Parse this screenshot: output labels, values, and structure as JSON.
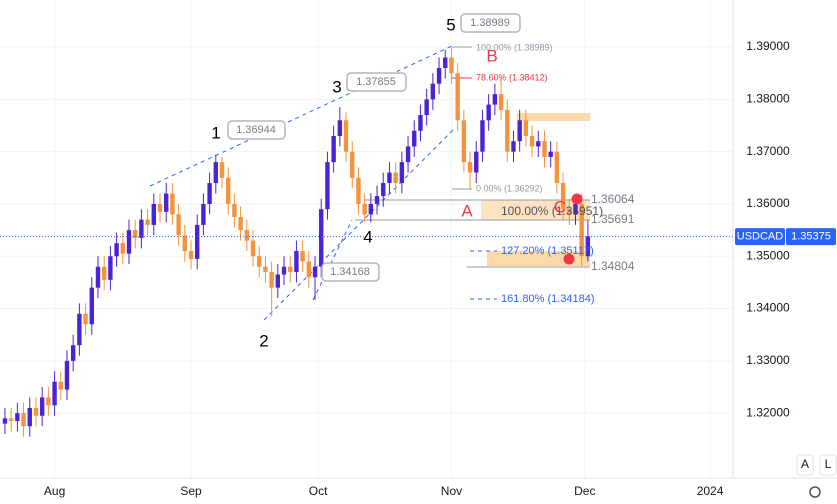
{
  "chart_data": {
    "type": "candlestick",
    "symbol": "USDCAD",
    "last_price": 1.35375,
    "up_color": "#4a23d6",
    "down_color": "#f5923e",
    "grid": true,
    "ylim": [
      1.3076,
      1.399
    ],
    "xlim": [
      -0.8,
      117.4
    ],
    "yticks": [
      {
        "value": 1.32,
        "label": "1.32000"
      },
      {
        "value": 1.33,
        "label": "1.33000"
      },
      {
        "value": 1.34,
        "label": "1.34000"
      },
      {
        "value": 1.35,
        "label": "1.35000"
      },
      {
        "value": 1.36,
        "label": "1.36000"
      },
      {
        "value": 1.37,
        "label": "1.37000"
      },
      {
        "value": 1.38,
        "label": "1.38000"
      },
      {
        "value": 1.39,
        "label": "1.39000"
      }
    ],
    "xticks": [
      {
        "value": 8,
        "label": "Aug"
      },
      {
        "value": 30,
        "label": "Sep"
      },
      {
        "value": 50.5,
        "label": "Oct"
      },
      {
        "value": 72,
        "label": "Nov"
      },
      {
        "value": 93.5,
        "label": "Dec"
      },
      {
        "value": 113.7,
        "label": "2024"
      }
    ],
    "x": [
      0,
      1,
      2,
      3,
      4,
      5,
      6,
      7,
      8,
      9,
      10,
      11,
      12,
      13,
      14,
      15,
      16,
      17,
      18,
      19,
      20,
      21,
      22,
      23,
      24,
      25,
      26,
      27,
      28,
      29,
      30,
      31,
      32,
      33,
      34,
      35,
      36,
      37,
      38,
      39,
      40,
      41,
      42,
      43,
      44,
      45,
      46,
      47,
      48,
      49,
      50,
      51,
      52,
      53,
      54,
      55,
      56,
      57,
      58,
      59,
      60,
      61,
      62,
      63,
      64,
      65,
      66,
      67,
      68,
      69,
      70,
      71,
      72,
      73,
      74,
      75,
      76,
      77,
      78,
      79,
      80,
      81,
      82,
      83,
      84,
      85,
      86,
      87,
      88,
      89,
      90,
      91,
      92,
      93,
      94
    ],
    "open": [
      1.318,
      1.319,
      1.3185,
      1.32,
      1.3175,
      1.321,
      1.3195,
      1.323,
      1.3215,
      1.326,
      1.3245,
      1.33,
      1.333,
      1.339,
      1.337,
      1.344,
      1.348,
      1.3455,
      1.35,
      1.3525,
      1.3505,
      1.355,
      1.3535,
      1.357,
      1.356,
      1.36,
      1.3585,
      1.362,
      1.358,
      1.354,
      1.351,
      1.3495,
      1.356,
      1.36,
      1.364,
      1.368,
      1.365,
      1.36,
      1.3575,
      1.355,
      1.353,
      1.35,
      1.348,
      1.347,
      1.344,
      1.3465,
      1.348,
      1.347,
      1.351,
      1.349,
      1.346,
      1.348,
      1.359,
      1.368,
      1.373,
      1.376,
      1.37,
      1.365,
      1.36,
      1.358,
      1.36,
      1.3615,
      1.364,
      1.366,
      1.364,
      1.368,
      1.371,
      1.374,
      1.377,
      1.38,
      1.383,
      1.386,
      1.388,
      1.385,
      1.376,
      1.368,
      1.366,
      1.37,
      1.376,
      1.379,
      1.381,
      1.378,
      1.37,
      1.372,
      1.376,
      1.373,
      1.371,
      1.372,
      1.369,
      1.37,
      1.364,
      1.359,
      1.358,
      1.36,
      1.35
    ],
    "high": [
      1.321,
      1.321,
      1.322,
      1.322,
      1.323,
      1.323,
      1.325,
      1.325,
      1.328,
      1.328,
      1.332,
      1.335,
      1.341,
      1.341,
      1.346,
      1.35,
      1.35,
      1.352,
      1.3545,
      1.3545,
      1.357,
      1.357,
      1.359,
      1.359,
      1.362,
      1.362,
      1.364,
      1.364,
      1.36,
      1.356,
      1.353,
      1.358,
      1.362,
      1.366,
      1.36944,
      1.369,
      1.367,
      1.362,
      1.3595,
      1.357,
      1.355,
      1.352,
      1.35,
      1.349,
      1.3485,
      1.35,
      1.35,
      1.353,
      1.353,
      1.351,
      1.35,
      1.361,
      1.37,
      1.375,
      1.37855,
      1.3775,
      1.372,
      1.367,
      1.362,
      1.362,
      1.3635,
      1.366,
      1.368,
      1.368,
      1.37,
      1.373,
      1.376,
      1.379,
      1.382,
      1.385,
      1.388,
      1.3895,
      1.38989,
      1.387,
      1.378,
      1.37,
      1.372,
      1.378,
      1.381,
      1.383,
      1.3841,
      1.38,
      1.374,
      1.378,
      1.378,
      1.375,
      1.374,
      1.374,
      1.372,
      1.372,
      1.366,
      1.361,
      1.3606,
      1.362,
      1.3569
    ],
    "low": [
      1.316,
      1.3165,
      1.3165,
      1.3155,
      1.3155,
      1.3175,
      1.3175,
      1.3195,
      1.3195,
      1.3225,
      1.3225,
      1.328,
      1.331,
      1.335,
      1.335,
      1.342,
      1.3435,
      1.3435,
      1.348,
      1.3485,
      1.3485,
      1.3515,
      1.3515,
      1.354,
      1.354,
      1.3565,
      1.3565,
      1.356,
      1.352,
      1.349,
      1.3475,
      1.3475,
      1.354,
      1.358,
      1.362,
      1.363,
      1.358,
      1.3555,
      1.353,
      1.351,
      1.348,
      1.346,
      1.345,
      1.3385,
      1.342,
      1.3445,
      1.345,
      1.345,
      1.347,
      1.344,
      1.34168,
      1.346,
      1.357,
      1.366,
      1.371,
      1.368,
      1.363,
      1.358,
      1.3565,
      1.3565,
      1.358,
      1.3595,
      1.362,
      1.362,
      1.362,
      1.366,
      1.369,
      1.372,
      1.375,
      1.378,
      1.381,
      1.384,
      1.383,
      1.374,
      1.366,
      1.36292,
      1.364,
      1.368,
      1.374,
      1.377,
      1.376,
      1.368,
      1.368,
      1.37,
      1.371,
      1.369,
      1.369,
      1.367,
      1.367,
      1.362,
      1.357,
      1.356,
      1.356,
      1.34804,
      1.349
    ],
    "close": [
      1.319,
      1.3185,
      1.32,
      1.3175,
      1.321,
      1.3195,
      1.323,
      1.3215,
      1.326,
      1.3245,
      1.33,
      1.333,
      1.339,
      1.337,
      1.344,
      1.348,
      1.3455,
      1.35,
      1.3525,
      1.3505,
      1.355,
      1.3535,
      1.357,
      1.356,
      1.36,
      1.3585,
      1.362,
      1.358,
      1.354,
      1.351,
      1.3495,
      1.356,
      1.36,
      1.364,
      1.368,
      1.365,
      1.36,
      1.3575,
      1.355,
      1.353,
      1.35,
      1.348,
      1.347,
      1.344,
      1.3465,
      1.348,
      1.347,
      1.351,
      1.349,
      1.346,
      1.348,
      1.359,
      1.368,
      1.373,
      1.376,
      1.37,
      1.365,
      1.36,
      1.358,
      1.36,
      1.3615,
      1.364,
      1.366,
      1.364,
      1.368,
      1.371,
      1.374,
      1.377,
      1.38,
      1.383,
      1.386,
      1.388,
      1.385,
      1.376,
      1.368,
      1.366,
      1.37,
      1.376,
      1.379,
      1.381,
      1.378,
      1.37,
      1.372,
      1.376,
      1.373,
      1.371,
      1.372,
      1.369,
      1.37,
      1.364,
      1.359,
      1.358,
      1.36,
      1.35,
      1.3538
    ],
    "annotations": [
      "1",
      1.36944,
      "2",
      1.34168,
      "3",
      1.37855,
      "4",
      "5",
      1.38989,
      "A",
      "B",
      "C",
      "100.00% (1.38989)",
      "78.60% (1.38412)",
      "0.00% (1.36292)",
      "100.00% (1.35951)",
      "127.20% (1.35117)",
      "161.80% (1.34184)",
      1.36064,
      1.35691,
      1.34804
    ],
    "buttons": [
      "A",
      "L"
    ]
  }
}
